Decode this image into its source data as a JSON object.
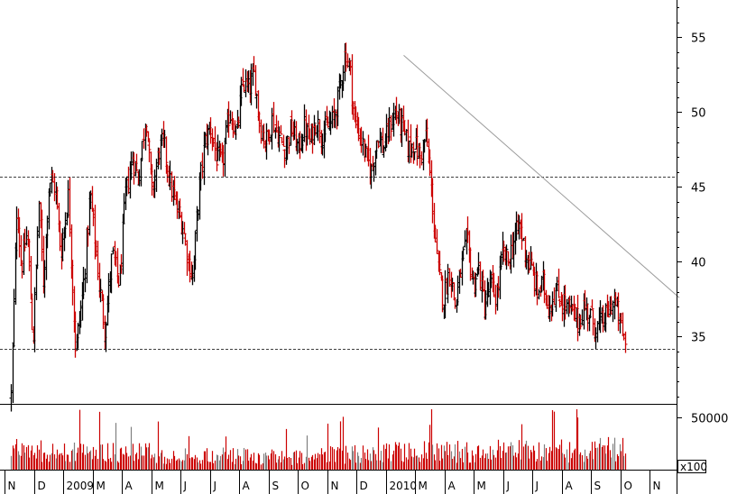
{
  "chart_data": {
    "type": "ohlc-bar",
    "grid": false,
    "price_axis": {
      "position": "right",
      "ticks": [
        35,
        40,
        45,
        50,
        55
      ],
      "tick_labels": [
        "35",
        "40",
        "45",
        "50",
        "55"
      ],
      "ylim": [
        30.5,
        57.5
      ]
    },
    "volume_axis": {
      "position": "right",
      "ticks": [
        50000
      ],
      "tick_labels": [
        "50000"
      ],
      "unit_label": "x100"
    },
    "month_labels": [
      "N",
      "D",
      "2009",
      "M",
      "A",
      "M",
      "J",
      "J",
      "A",
      "S",
      "O",
      "N",
      "D",
      "2010",
      "M",
      "A",
      "M",
      "J",
      "J",
      "A",
      "S",
      "O",
      "N"
    ],
    "support_resistance_levels": [
      45.7,
      34.2
    ],
    "trendline": {
      "start": {
        "month_index": 13.4,
        "price": 53.8
      },
      "end": {
        "month_index": 22.8,
        "price": 37.6
      }
    },
    "price_path": [
      {
        "m": 0.0,
        "p": 31.0
      },
      {
        "m": 0.2,
        "p": 44.0
      },
      {
        "m": 0.35,
        "p": 39.5
      },
      {
        "m": 0.55,
        "p": 42.0
      },
      {
        "m": 0.75,
        "p": 34.5
      },
      {
        "m": 0.95,
        "p": 44.0
      },
      {
        "m": 1.1,
        "p": 38.5
      },
      {
        "m": 1.3,
        "p": 45.5
      },
      {
        "m": 1.5,
        "p": 45.0
      },
      {
        "m": 1.7,
        "p": 40.5
      },
      {
        "m": 1.95,
        "p": 44.5
      },
      {
        "m": 2.2,
        "p": 34.0
      },
      {
        "m": 2.45,
        "p": 38.0
      },
      {
        "m": 2.7,
        "p": 44.5
      },
      {
        "m": 3.0,
        "p": 38.5
      },
      {
        "m": 3.2,
        "p": 35.5
      },
      {
        "m": 3.45,
        "p": 40.5
      },
      {
        "m": 3.7,
        "p": 38.5
      },
      {
        "m": 3.9,
        "p": 44.5
      },
      {
        "m": 4.15,
        "p": 47.0
      },
      {
        "m": 4.35,
        "p": 45.5
      },
      {
        "m": 4.6,
        "p": 50.0
      },
      {
        "m": 4.8,
        "p": 44.5
      },
      {
        "m": 5.05,
        "p": 47.5
      },
      {
        "m": 5.2,
        "p": 48.0
      },
      {
        "m": 5.45,
        "p": 45.0
      },
      {
        "m": 5.65,
        "p": 43.5
      },
      {
        "m": 5.85,
        "p": 42.5
      },
      {
        "m": 6.05,
        "p": 40.0
      },
      {
        "m": 6.2,
        "p": 39.0
      },
      {
        "m": 6.4,
        "p": 44.5
      },
      {
        "m": 6.6,
        "p": 48.0
      },
      {
        "m": 6.8,
        "p": 49.0
      },
      {
        "m": 7.0,
        "p": 47.0
      },
      {
        "m": 7.2,
        "p": 46.5
      },
      {
        "m": 7.45,
        "p": 50.0
      },
      {
        "m": 7.7,
        "p": 48.5
      },
      {
        "m": 7.9,
        "p": 52.0
      },
      {
        "m": 8.1,
        "p": 51.5
      },
      {
        "m": 8.3,
        "p": 52.5
      },
      {
        "m": 8.5,
        "p": 49.0
      },
      {
        "m": 8.7,
        "p": 48.0
      },
      {
        "m": 8.9,
        "p": 49.5
      },
      {
        "m": 9.1,
        "p": 48.5
      },
      {
        "m": 9.35,
        "p": 47.5
      },
      {
        "m": 9.55,
        "p": 49.0
      },
      {
        "m": 9.8,
        "p": 47.5
      },
      {
        "m": 10.0,
        "p": 49.0
      },
      {
        "m": 10.2,
        "p": 48.0
      },
      {
        "m": 10.4,
        "p": 49.5
      },
      {
        "m": 10.6,
        "p": 48.5
      },
      {
        "m": 10.8,
        "p": 49.0
      },
      {
        "m": 11.0,
        "p": 49.5
      },
      {
        "m": 11.2,
        "p": 51.5
      },
      {
        "m": 11.4,
        "p": 54.0
      },
      {
        "m": 11.55,
        "p": 53.0
      },
      {
        "m": 11.7,
        "p": 49.5
      },
      {
        "m": 11.9,
        "p": 48.5
      },
      {
        "m": 12.1,
        "p": 47.0
      },
      {
        "m": 12.3,
        "p": 46.0
      },
      {
        "m": 12.5,
        "p": 48.5
      },
      {
        "m": 12.7,
        "p": 47.5
      },
      {
        "m": 12.9,
        "p": 49.0
      },
      {
        "m": 13.1,
        "p": 50.0
      },
      {
        "m": 13.35,
        "p": 49.0
      },
      {
        "m": 13.55,
        "p": 47.5
      },
      {
        "m": 13.75,
        "p": 48.0
      },
      {
        "m": 13.95,
        "p": 47.0
      },
      {
        "m": 14.15,
        "p": 48.5
      },
      {
        "m": 14.35,
        "p": 44.5
      },
      {
        "m": 14.55,
        "p": 39.5
      },
      {
        "m": 14.75,
        "p": 37.5
      },
      {
        "m": 14.95,
        "p": 39.5
      },
      {
        "m": 15.15,
        "p": 37.0
      },
      {
        "m": 15.35,
        "p": 39.5
      },
      {
        "m": 15.55,
        "p": 41.5
      },
      {
        "m": 15.75,
        "p": 38.5
      },
      {
        "m": 15.95,
        "p": 39.5
      },
      {
        "m": 16.15,
        "p": 37.0
      },
      {
        "m": 16.35,
        "p": 38.5
      },
      {
        "m": 16.55,
        "p": 37.5
      },
      {
        "m": 16.75,
        "p": 40.5
      },
      {
        "m": 16.95,
        "p": 40.0
      },
      {
        "m": 17.15,
        "p": 41.5
      },
      {
        "m": 17.35,
        "p": 42.5
      },
      {
        "m": 17.55,
        "p": 40.5
      },
      {
        "m": 17.75,
        "p": 39.5
      },
      {
        "m": 17.95,
        "p": 38.0
      },
      {
        "m": 18.15,
        "p": 38.5
      },
      {
        "m": 18.35,
        "p": 37.0
      },
      {
        "m": 18.55,
        "p": 38.0
      },
      {
        "m": 18.75,
        "p": 37.5
      },
      {
        "m": 18.95,
        "p": 37.0
      },
      {
        "m": 19.15,
        "p": 36.5
      },
      {
        "m": 19.35,
        "p": 36.0
      },
      {
        "m": 19.55,
        "p": 37.0
      },
      {
        "m": 19.75,
        "p": 36.5
      },
      {
        "m": 19.95,
        "p": 35.5
      },
      {
        "m": 20.15,
        "p": 36.0
      },
      {
        "m": 20.35,
        "p": 36.5
      },
      {
        "m": 20.55,
        "p": 37.5
      },
      {
        "m": 20.75,
        "p": 36.0
      },
      {
        "m": 20.95,
        "p": 34.5
      }
    ],
    "volume_path": [
      {
        "m": 0.0,
        "v": 19000
      },
      {
        "m": 2.0,
        "v": 17000
      },
      {
        "m": 4.0,
        "v": 17000
      },
      {
        "m": 6.0,
        "v": 14000
      },
      {
        "m": 8.0,
        "v": 13000
      },
      {
        "m": 10.0,
        "v": 12000
      },
      {
        "m": 12.0,
        "v": 17000
      },
      {
        "m": 14.0,
        "v": 18000
      },
      {
        "m": 16.0,
        "v": 19000
      },
      {
        "m": 18.0,
        "v": 18000
      },
      {
        "m": 20.0,
        "v": 19000
      },
      {
        "m": 21.0,
        "v": 22000
      }
    ],
    "colors": {
      "up_bar": "#000000",
      "down_bar": "#cc0000",
      "volume_bar": "#cc0000",
      "volume_bar_alt": "#808080",
      "level_line": "#000000",
      "trendline": "#9a9a9a"
    }
  }
}
